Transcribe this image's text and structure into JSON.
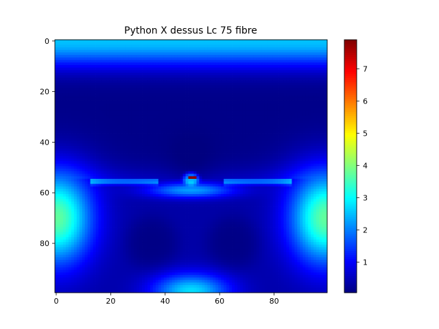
{
  "chart_data": {
    "type": "heatmap",
    "title": "Python X dessus Lc 75 fibre",
    "xlabel": "",
    "ylabel": "",
    "grid_shape": [
      100,
      100
    ],
    "x_range": [
      0,
      99
    ],
    "y_range": [
      0,
      99
    ],
    "y_inverted": true,
    "x_ticks": [
      0,
      20,
      40,
      60,
      80
    ],
    "y_ticks": [
      0,
      20,
      40,
      60,
      80
    ],
    "colormap": "jet",
    "colorbar": {
      "range": [
        0.05,
        7.9
      ],
      "ticks": [
        1,
        2,
        3,
        4,
        5,
        6,
        7
      ]
    },
    "features": [
      {
        "label": "peak",
        "x": 50,
        "y": 54,
        "value": 7.8
      },
      {
        "label": "left edge band",
        "x": 0,
        "y": 70,
        "value": 3.8
      },
      {
        "label": "right edge band",
        "x": 99,
        "y": 70,
        "value": 3.8
      },
      {
        "label": "top edge",
        "x": 50,
        "y": 0,
        "value": 2.5
      },
      {
        "label": "bottom center",
        "x": 50,
        "y": 99,
        "value": 2.4
      },
      {
        "label": "dark band",
        "x": 50,
        "y": 28,
        "value": 0.1
      },
      {
        "label": "lower-left dark lobe",
        "x": 35,
        "y": 80,
        "value": 0.4
      },
      {
        "label": "lower-right dark lobe",
        "x": 65,
        "y": 80,
        "value": 0.4
      }
    ]
  }
}
